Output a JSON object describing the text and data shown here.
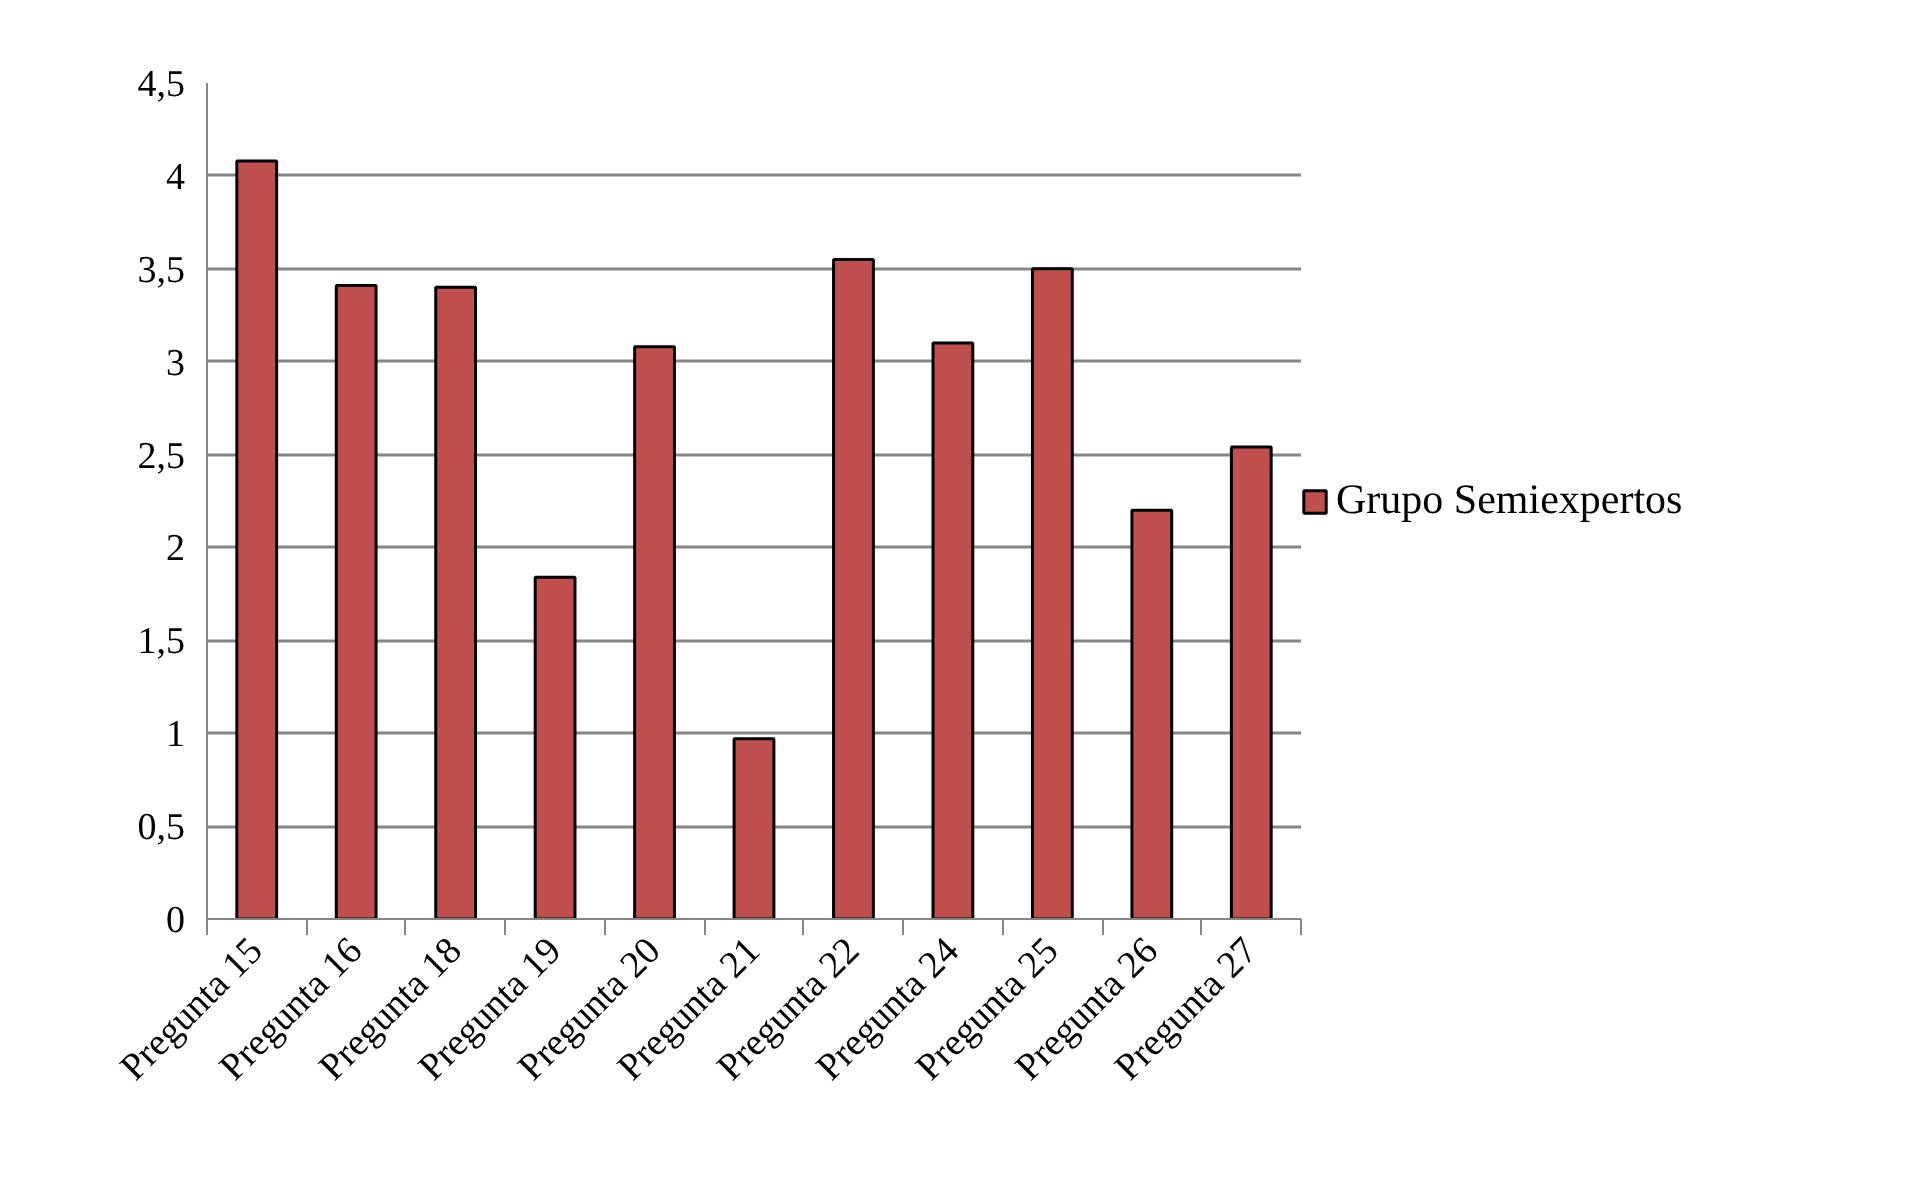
{
  "chart_data": {
    "type": "bar",
    "categories": [
      "Pregunta 15",
      "Pregunta 16",
      "Pregunta 18",
      "Pregunta 19",
      "Pregunta 20",
      "Pregunta 21",
      "Pregunta 22",
      "Pregunta 24",
      "Pregunta 25",
      "Pregunta 26",
      "Pregunta 27"
    ],
    "series": [
      {
        "name": "Grupo Semiexpertos",
        "color": "#c0504d",
        "values": [
          4.08,
          3.41,
          3.4,
          1.84,
          3.08,
          0.97,
          3.55,
          3.1,
          3.5,
          2.2,
          2.54
        ]
      }
    ],
    "ylim": [
      0,
      4.5
    ],
    "yticks": [
      0,
      {
        "value": 0.5,
        "label": "0,5"
      },
      1,
      {
        "value": 1.5,
        "label": "1,5"
      },
      2,
      {
        "value": 2.5,
        "label": "2,5"
      },
      3,
      {
        "value": 3.5,
        "label": "3,5"
      },
      4,
      {
        "value": 4.5,
        "label": "4,5"
      }
    ],
    "grid": "y",
    "legend": "right"
  }
}
